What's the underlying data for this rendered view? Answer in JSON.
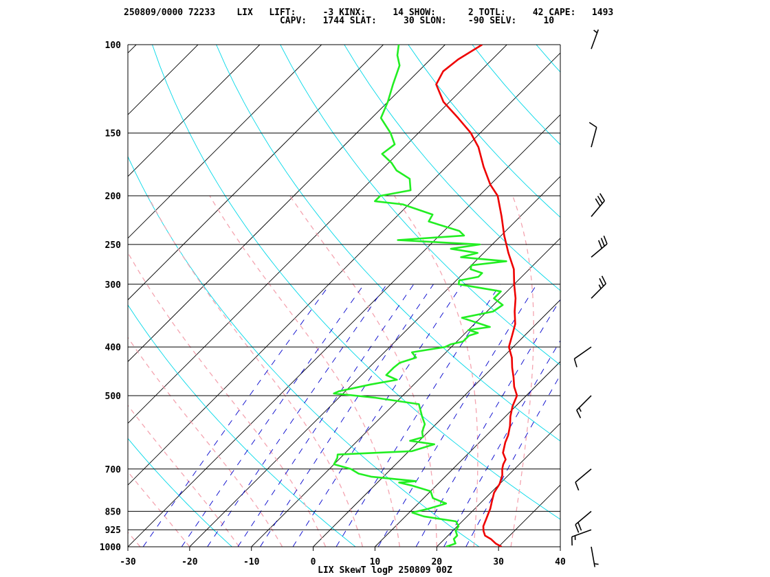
{
  "header": {
    "line1": "250809/0000 72233    LIX   LIFT:     -3 KINX:     14 SHOW:      2 TOTL:     42 CAPE:   1493",
    "line2": "                             CAPV:   1744 SLAT:     30 SLON:    -90 SELV:     10"
  },
  "chart_data": {
    "type": "line",
    "title": "LIX SkewT logP 250809 00Z",
    "station": "LIX",
    "station_id": "72233",
    "datetime": "250809/0000",
    "indices": {
      "LIFT": -3,
      "KINX": 14,
      "SHOW": 2,
      "TOTL": 42,
      "CAPE": 1493,
      "CAPV": 1744,
      "SLAT": 30,
      "SLON": -90,
      "SELV": 10
    },
    "xlabel": "",
    "ylabel": "",
    "x_ticks": [
      -30,
      -20,
      -10,
      0,
      10,
      20,
      30,
      40
    ],
    "x_range": [
      -30,
      40
    ],
    "y_scale": "log",
    "y_range": [
      1000,
      100
    ],
    "y_ticks": [
      100,
      150,
      200,
      250,
      300,
      400,
      500,
      700,
      850,
      925,
      1000
    ],
    "series": [
      {
        "key": "temperature",
        "color": "#ee0000",
        "points": [
          [
            1000,
            30.5
          ],
          [
            985,
            29
          ],
          [
            965,
            27.5
          ],
          [
            950,
            26
          ],
          [
            930,
            25
          ],
          [
            910,
            24.2
          ],
          [
            880,
            23.5
          ],
          [
            860,
            23
          ],
          [
            840,
            22.5
          ],
          [
            810,
            21.5
          ],
          [
            780,
            20.5
          ],
          [
            750,
            20
          ],
          [
            720,
            19
          ],
          [
            700,
            18
          ],
          [
            685,
            17.4
          ],
          [
            670,
            17
          ],
          [
            650,
            15.5
          ],
          [
            620,
            14.2
          ],
          [
            600,
            13.5
          ],
          [
            575,
            12.3
          ],
          [
            550,
            10.8
          ],
          [
            525,
            9.5
          ],
          [
            500,
            8.5
          ],
          [
            480,
            6.6
          ],
          [
            460,
            5
          ],
          [
            440,
            3.2
          ],
          [
            420,
            1.5
          ],
          [
            400,
            -0.7
          ],
          [
            380,
            -2
          ],
          [
            360,
            -3.4
          ],
          [
            340,
            -5.5
          ],
          [
            320,
            -7.5
          ],
          [
            300,
            -10
          ],
          [
            280,
            -12.5
          ],
          [
            260,
            -16
          ],
          [
            240,
            -19.5
          ],
          [
            220,
            -23
          ],
          [
            200,
            -27
          ],
          [
            190,
            -30
          ],
          [
            175,
            -34
          ],
          [
            160,
            -38
          ],
          [
            150,
            -41.5
          ],
          [
            140,
            -46
          ],
          [
            130,
            -51
          ],
          [
            120,
            -55
          ],
          [
            113,
            -56
          ],
          [
            107,
            -55.5
          ],
          [
            100,
            -54
          ]
        ]
      },
      {
        "key": "dewpoint",
        "color": "#22ee22",
        "points": [
          [
            1000,
            21.5
          ],
          [
            985,
            22.5
          ],
          [
            965,
            21.5
          ],
          [
            950,
            21.5
          ],
          [
            930,
            20.5
          ],
          [
            910,
            20.2
          ],
          [
            890,
            19
          ],
          [
            870,
            13
          ],
          [
            855,
            10.5
          ],
          [
            840,
            12.5
          ],
          [
            820,
            14.5
          ],
          [
            800,
            11.5
          ],
          [
            775,
            10
          ],
          [
            755,
            6
          ],
          [
            745,
            3.5
          ],
          [
            740,
            6
          ],
          [
            725,
            -2
          ],
          [
            715,
            -4.5
          ],
          [
            700,
            -6.5
          ],
          [
            685,
            -10
          ],
          [
            665,
            -10.5
          ],
          [
            655,
            -11
          ],
          [
            645,
            0.5
          ],
          [
            625,
            3
          ],
          [
            615,
            -1.5
          ],
          [
            605,
            0
          ],
          [
            590,
            -1
          ],
          [
            570,
            -1.8
          ],
          [
            550,
            -3.5
          ],
          [
            520,
            -6
          ],
          [
            505,
            -14
          ],
          [
            495,
            -21.5
          ],
          [
            490,
            -21
          ],
          [
            475,
            -17
          ],
          [
            465,
            -13.5
          ],
          [
            455,
            -16
          ],
          [
            440,
            -16
          ],
          [
            430,
            -15.8
          ],
          [
            420,
            -14
          ],
          [
            410,
            -15.5
          ],
          [
            400,
            -11
          ],
          [
            395,
            -10.5
          ],
          [
            390,
            -9
          ],
          [
            380,
            -9
          ],
          [
            375,
            -8
          ],
          [
            370,
            -10
          ],
          [
            365,
            -7
          ],
          [
            350,
            -13
          ],
          [
            340,
            -9
          ],
          [
            330,
            -8.5
          ],
          [
            320,
            -11
          ],
          [
            310,
            -11
          ],
          [
            300,
            -19
          ],
          [
            295,
            -19.5
          ],
          [
            290,
            -17
          ],
          [
            285,
            -17
          ],
          [
            280,
            -19.5
          ],
          [
            275,
            -20
          ],
          [
            270,
            -15
          ],
          [
            265,
            -23
          ],
          [
            260,
            -21
          ],
          [
            255,
            -26
          ],
          [
            250,
            -22
          ],
          [
            245,
            -36
          ],
          [
            240,
            -26
          ],
          [
            235,
            -27.5
          ],
          [
            225,
            -34
          ],
          [
            218,
            -34.5
          ],
          [
            208,
            -41
          ],
          [
            205,
            -46
          ],
          [
            200,
            -46
          ],
          [
            195,
            -42
          ],
          [
            185,
            -44
          ],
          [
            178,
            -47.5
          ],
          [
            172,
            -49.5
          ],
          [
            165,
            -52.5
          ],
          [
            158,
            -52
          ],
          [
            150,
            -54.5
          ],
          [
            140,
            -58.5
          ],
          [
            130,
            -60
          ],
          [
            120,
            -62
          ],
          [
            110,
            -64
          ],
          [
            105,
            -66
          ],
          [
            100,
            -67.5
          ]
        ]
      }
    ],
    "dry_adiabats_K": [
      260,
      280,
      300,
      320,
      340,
      360,
      380,
      400,
      420,
      440,
      460,
      480,
      500
    ],
    "moist_adiabats_C": [
      -28,
      -20,
      -12,
      -5,
      2,
      8,
      14,
      20,
      26,
      32
    ],
    "mixing_ratios_gkg": [
      0.4,
      0.7,
      1,
      1.5,
      2,
      3,
      5,
      8,
      12,
      16,
      20
    ],
    "grid": true,
    "wind_barbs": [
      {
        "p": 1000,
        "dir": 170,
        "kt": 5
      },
      {
        "p": 925,
        "dir": 250,
        "kt": 15
      },
      {
        "p": 850,
        "dir": 230,
        "kt": 20
      },
      {
        "p": 700,
        "dir": 230,
        "kt": 10
      },
      {
        "p": 500,
        "dir": 225,
        "kt": 15
      },
      {
        "p": 400,
        "dir": 235,
        "kt": 10
      },
      {
        "p": 320,
        "dir": 45,
        "kt": 25
      },
      {
        "p": 265,
        "dir": 50,
        "kt": 30
      },
      {
        "p": 220,
        "dir": 40,
        "kt": 30
      },
      {
        "p": 160,
        "dir": 15,
        "kt": 10
      },
      {
        "p": 102,
        "dir": 20,
        "kt": 5
      }
    ]
  }
}
